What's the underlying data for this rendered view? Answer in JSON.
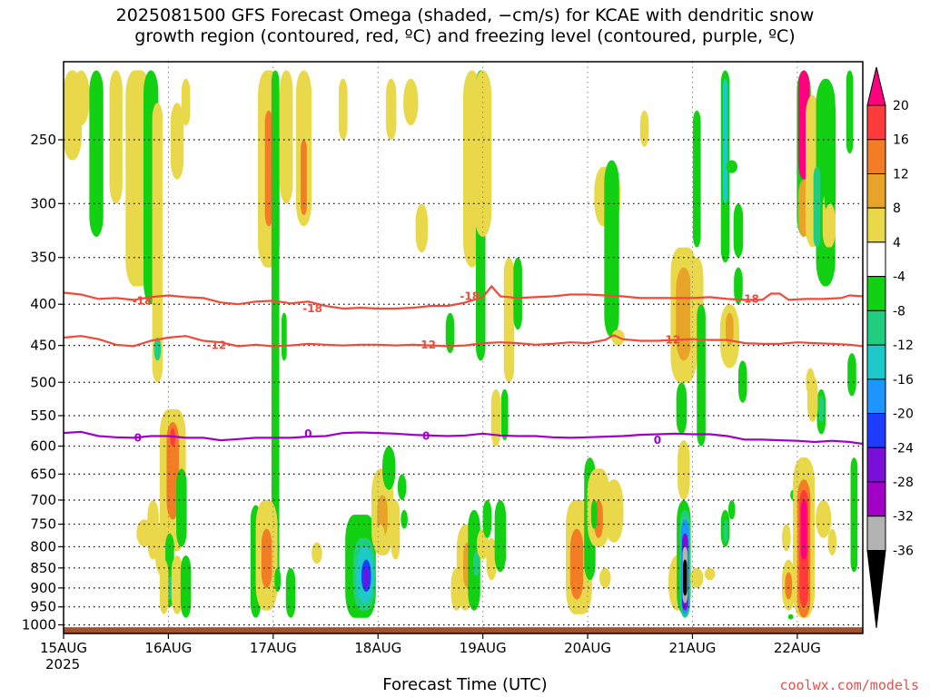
{
  "title": {
    "line1": "2025081500 GFS Forecast Omega (shaded, −cm/s) for KCAE with dendritic snow",
    "line2": "growth region (contoured, red, ºC) and freezing level (contoured, purple, ºC)"
  },
  "credit": "coolwx.com/models",
  "chart_data": {
    "type": "heatmap",
    "title": "2025081500 GFS Forecast Omega (shaded, −cm/s) for KCAE with dendritic snow growth region (contoured, red, ºC) and freezing level (contoured, purple, ºC)",
    "xlabel": "Forecast Time (UTC)",
    "ylabel": "",
    "x_ticks": [
      "15AUG\n2025",
      "16AUG",
      "17AUG",
      "18AUG",
      "19AUG",
      "20AUG",
      "21AUG",
      "22AUG"
    ],
    "x_tick_hours": [
      0,
      24,
      48,
      72,
      96,
      120,
      144,
      168
    ],
    "xlim_hours": [
      0,
      183
    ],
    "y_ticks": [
      250,
      300,
      350,
      400,
      450,
      500,
      550,
      600,
      650,
      700,
      750,
      800,
      850,
      900,
      950,
      1000
    ],
    "ylim_hpa": [
      200,
      1025
    ],
    "y_scale": "log-pressure",
    "grid": true,
    "colorbar": {
      "labels": [
        "20",
        "16",
        "12",
        "8",
        "4",
        "-4",
        "-8",
        "-12",
        "-16",
        "-20",
        "-24",
        "-28",
        "-32",
        "-36"
      ],
      "colors": [
        "#ff007f",
        "#ff3b3b",
        "#f27d24",
        "#e8a428",
        "#e8d84a",
        "#ffffff",
        "#12d112",
        "#1fcf7f",
        "#1ec9c9",
        "#1e96ff",
        "#1e3cff",
        "#7a10d8",
        "#a300c7",
        "#b3b3b3",
        "#000000"
      ]
    },
    "contours": [
      {
        "name": "-18",
        "color": "#f04a3a",
        "label": "-18",
        "points": [
          [
            0,
            387
          ],
          [
            4,
            389
          ],
          [
            8,
            394
          ],
          [
            12,
            393
          ],
          [
            16,
            395
          ],
          [
            20,
            392
          ],
          [
            24,
            390
          ],
          [
            28,
            392
          ],
          [
            32,
            393
          ],
          [
            36,
            398
          ],
          [
            40,
            400
          ],
          [
            44,
            397
          ],
          [
            48,
            396
          ],
          [
            52,
            399
          ],
          [
            56,
            397
          ],
          [
            60,
            402
          ],
          [
            64,
            405
          ],
          [
            68,
            404
          ],
          [
            72,
            405
          ],
          [
            76,
            405
          ],
          [
            80,
            404
          ],
          [
            84,
            402
          ],
          [
            88,
            402
          ],
          [
            92,
            398
          ],
          [
            96,
            392
          ],
          [
            98,
            380
          ],
          [
            100,
            391
          ],
          [
            104,
            393
          ],
          [
            108,
            392
          ],
          [
            112,
            391
          ],
          [
            116,
            389
          ],
          [
            120,
            389
          ],
          [
            124,
            390
          ],
          [
            128,
            391
          ],
          [
            132,
            393
          ],
          [
            136,
            393
          ],
          [
            140,
            393
          ],
          [
            144,
            393
          ],
          [
            148,
            392
          ],
          [
            152,
            394
          ],
          [
            156,
            395
          ],
          [
            160,
            395
          ],
          [
            162,
            388
          ],
          [
            164,
            388
          ],
          [
            166,
            395
          ],
          [
            170,
            394
          ],
          [
            174,
            394
          ],
          [
            178,
            393
          ],
          [
            180,
            390
          ],
          [
            183,
            391
          ]
        ]
      },
      {
        "name": "-12",
        "color": "#f04a3a",
        "label": "-12",
        "points": [
          [
            0,
            440
          ],
          [
            4,
            438
          ],
          [
            8,
            442
          ],
          [
            12,
            449
          ],
          [
            16,
            451
          ],
          [
            20,
            444
          ],
          [
            24,
            440
          ],
          [
            28,
            438
          ],
          [
            32,
            444
          ],
          [
            36,
            446
          ],
          [
            40,
            451
          ],
          [
            44,
            449
          ],
          [
            48,
            451
          ],
          [
            52,
            450
          ],
          [
            56,
            448
          ],
          [
            60,
            449
          ],
          [
            64,
            450
          ],
          [
            68,
            449
          ],
          [
            72,
            449
          ],
          [
            76,
            450
          ],
          [
            80,
            449
          ],
          [
            84,
            450
          ],
          [
            88,
            451
          ],
          [
            92,
            450
          ],
          [
            96,
            447
          ],
          [
            100,
            446
          ],
          [
            104,
            447
          ],
          [
            108,
            449
          ],
          [
            112,
            448
          ],
          [
            116,
            446
          ],
          [
            120,
            447
          ],
          [
            124,
            443
          ],
          [
            126,
            437
          ],
          [
            128,
            442
          ],
          [
            132,
            444
          ],
          [
            136,
            444
          ],
          [
            140,
            443
          ],
          [
            144,
            442
          ],
          [
            148,
            443
          ],
          [
            152,
            443
          ],
          [
            156,
            447
          ],
          [
            160,
            448
          ],
          [
            164,
            448
          ],
          [
            168,
            446
          ],
          [
            172,
            447
          ],
          [
            176,
            448
          ],
          [
            180,
            449
          ],
          [
            183,
            451
          ]
        ]
      },
      {
        "name": "0",
        "color": "#a000c8",
        "label": "0",
        "points": [
          [
            0,
            578
          ],
          [
            4,
            576
          ],
          [
            8,
            583
          ],
          [
            12,
            585
          ],
          [
            16,
            586
          ],
          [
            20,
            583
          ],
          [
            24,
            583
          ],
          [
            28,
            586
          ],
          [
            32,
            586
          ],
          [
            36,
            590
          ],
          [
            40,
            588
          ],
          [
            44,
            586
          ],
          [
            48,
            586
          ],
          [
            52,
            586
          ],
          [
            56,
            584
          ],
          [
            60,
            583
          ],
          [
            64,
            578
          ],
          [
            68,
            577
          ],
          [
            72,
            578
          ],
          [
            76,
            579
          ],
          [
            80,
            581
          ],
          [
            84,
            582
          ],
          [
            88,
            583
          ],
          [
            92,
            582
          ],
          [
            96,
            579
          ],
          [
            100,
            582
          ],
          [
            104,
            583
          ],
          [
            108,
            583
          ],
          [
            112,
            585
          ],
          [
            116,
            586
          ],
          [
            120,
            585
          ],
          [
            124,
            584
          ],
          [
            128,
            583
          ],
          [
            132,
            581
          ],
          [
            136,
            580
          ],
          [
            140,
            579
          ],
          [
            144,
            580
          ],
          [
            148,
            580
          ],
          [
            152,
            583
          ],
          [
            156,
            589
          ],
          [
            160,
            589
          ],
          [
            164,
            590
          ],
          [
            168,
            591
          ],
          [
            172,
            593
          ],
          [
            176,
            591
          ],
          [
            180,
            593
          ],
          [
            183,
            596
          ]
        ]
      }
    ],
    "terrain_color": "#a0522d",
    "terrain_top_hpa": 1007
  }
}
